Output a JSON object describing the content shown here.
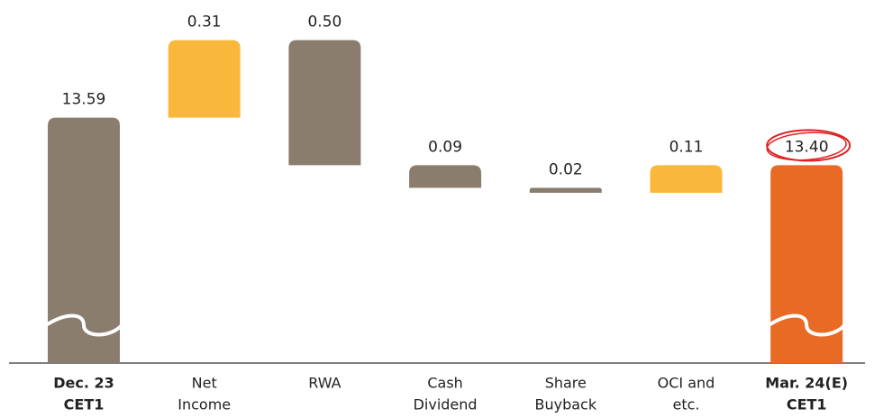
{
  "chart_data": {
    "type": "waterfall",
    "categories": [
      [
        "Dec. 23",
        "CET1"
      ],
      [
        "Net",
        "Income"
      ],
      [
        "RWA"
      ],
      [
        "Cash",
        "Dividend"
      ],
      [
        "Share",
        "Buyback"
      ],
      [
        "OCI and",
        "etc."
      ],
      [
        "Mar. 24(E)",
        "CET1"
      ]
    ],
    "measure": [
      "absolute",
      "relative",
      "relative",
      "relative",
      "relative",
      "relative",
      "absolute"
    ],
    "values": [
      13.59,
      0.31,
      -0.5,
      -0.09,
      -0.02,
      0.11,
      13.4
    ],
    "value_labels": [
      "13.59",
      "0.31",
      "0.50",
      "0.09",
      "0.02",
      "0.11",
      "13.40"
    ],
    "colors": [
      "#8a7d6e",
      "#f9b83c",
      "#8a7d6e",
      "#8a7d6e",
      "#8a7d6e",
      "#f9b83c",
      "#e86a24"
    ],
    "ylim": [
      12.61,
      14.06
    ],
    "axis_break": true,
    "highlight": [
      6
    ]
  }
}
